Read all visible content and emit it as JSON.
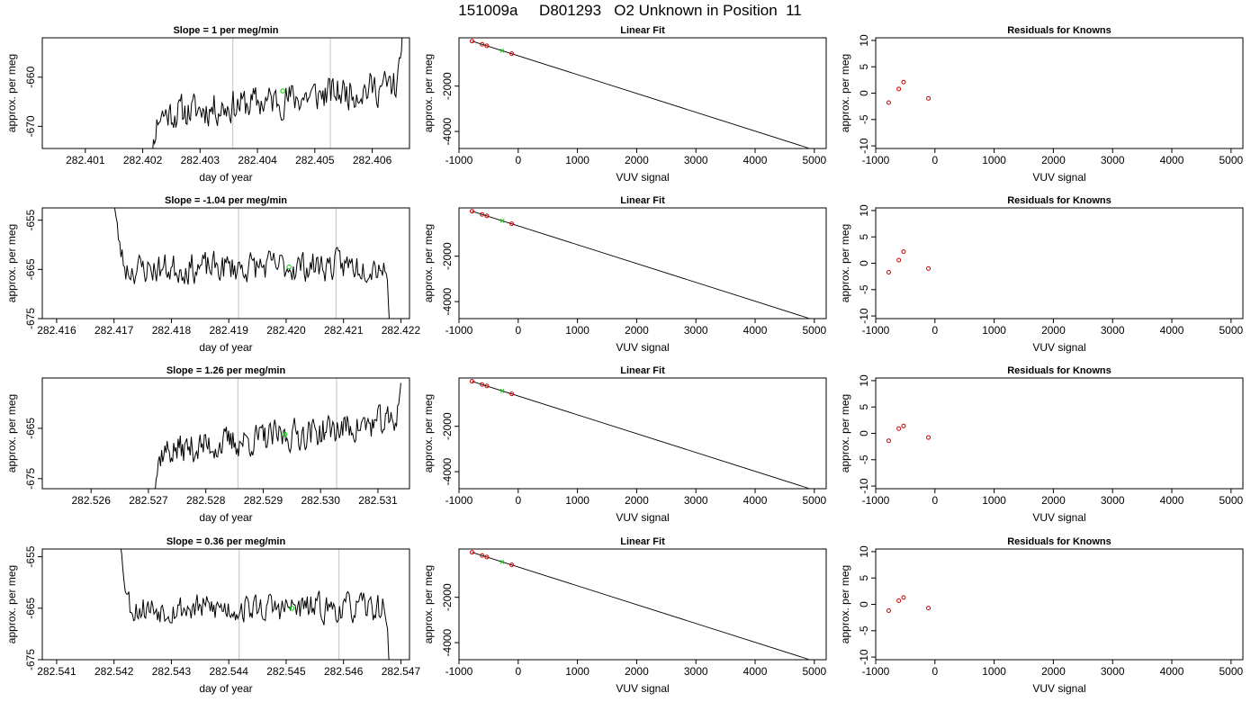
{
  "main_title": "151009a     D801293   O2 Unknown in Position  11",
  "style": {
    "trace_color": "#000000",
    "marker_color": "#00cc00",
    "residual_color": "#cc0000",
    "guide_color": "#cccccc",
    "fit_color": "#000000"
  },
  "chart_data": [
    {
      "type": "line",
      "panel": "time-series",
      "row": 1,
      "title": "Slope =  1  per meg/min",
      "xlabel": "day of year",
      "ylabel": "approx. per meg",
      "xlim": [
        282.40025,
        282.40665
      ],
      "ylim": [
        -674.5,
        -652
      ],
      "xticks": [
        "282.401",
        "282.402",
        "282.403",
        "282.404",
        "282.405",
        "282.406"
      ],
      "xtick_values": [
        282.401,
        282.402,
        282.403,
        282.404,
        282.405,
        282.406
      ],
      "yticks": [
        "-660",
        "-670"
      ],
      "ytick_values": [
        -660,
        -670
      ],
      "guides": [
        282.40357,
        282.40527
      ],
      "trace": {
        "x0": 282.40205,
        "x1": 282.40655,
        "base_start": -668,
        "base_end": -661.5,
        "entry": -690,
        "exit": -645,
        "noise": 2.2,
        "seed": 11
      },
      "marker": {
        "x": 282.40444,
        "y": -662.8
      }
    },
    {
      "type": "scatter",
      "panel": "linear-fit",
      "row": 1,
      "title": "Linear Fit",
      "xlabel": "VUV signal",
      "ylabel": "approx. per meg",
      "xlim": [
        -1000,
        5200
      ],
      "ylim": [
        -4750,
        130
      ],
      "xticks": [
        "-1000",
        "0",
        "1000",
        "2000",
        "3000",
        "4000",
        "5000"
      ],
      "xtick_values": [
        -1000,
        0,
        1000,
        2000,
        3000,
        4000,
        5000
      ],
      "yticks": [
        "-2000",
        "-4000"
      ],
      "ytick_values": [
        -2000,
        -4000
      ],
      "fit": {
        "x": [
          -780,
          4900
        ],
        "y": [
          -16,
          -4730
        ]
      },
      "points": [
        {
          "x": -780,
          "y": -16
        },
        {
          "x": -610,
          "y": -157
        },
        {
          "x": -530,
          "y": -222
        },
        {
          "x": -110,
          "y": -570
        }
      ],
      "unknown": {
        "x": -270,
        "y": -438
      }
    },
    {
      "type": "scatter",
      "panel": "residuals",
      "row": 1,
      "title": "Residuals for Knowns",
      "xlabel": "VUV signal",
      "ylabel": "approx. per meg",
      "xlim": [
        -1000,
        5200
      ],
      "ylim": [
        -10.5,
        10.5
      ],
      "xticks": [
        "-1000",
        "0",
        "1000",
        "2000",
        "3000",
        "4000",
        "5000"
      ],
      "xtick_values": [
        -1000,
        0,
        1000,
        2000,
        3000,
        4000,
        5000
      ],
      "yticks": [
        "10",
        "5",
        "0",
        "-5",
        "-10"
      ],
      "ytick_values": [
        10,
        5,
        0,
        -5,
        -10
      ],
      "points": [
        {
          "x": -780,
          "y": -1.8
        },
        {
          "x": -610,
          "y": 0.8
        },
        {
          "x": -530,
          "y": 2.1
        },
        {
          "x": -110,
          "y": -1.0
        }
      ]
    },
    {
      "type": "line",
      "panel": "time-series",
      "row": 2,
      "title": "Slope =  -1.04  per meg/min",
      "xlabel": "day of year",
      "ylabel": "approx. per meg",
      "xlim": [
        282.41575,
        282.42215
      ],
      "ylim": [
        -675,
        -652.5
      ],
      "xticks": [
        "282.416",
        "282.417",
        "282.418",
        "282.419",
        "282.420",
        "282.421",
        "282.422"
      ],
      "xtick_values": [
        282.416,
        282.417,
        282.418,
        282.419,
        282.42,
        282.421,
        282.422
      ],
      "yticks": [
        "-655",
        "-665",
        "-675"
      ],
      "ytick_values": [
        -655,
        -665,
        -675
      ],
      "guides": [
        282.41917,
        282.42087
      ],
      "trace": {
        "x0": 282.41695,
        "x1": 282.42185,
        "base_start": -665,
        "base_end": -664,
        "entry": -645,
        "exit": -690,
        "noise": 2.0,
        "seed": 23
      },
      "marker": {
        "x": 282.42005,
        "y": -664.5
      }
    },
    {
      "type": "scatter",
      "panel": "linear-fit",
      "row": 2,
      "title": "Linear Fit",
      "xlabel": "VUV signal",
      "ylabel": "approx. per meg",
      "xlim": [
        -1000,
        5200
      ],
      "ylim": [
        -4750,
        130
      ],
      "xticks": [
        "-1000",
        "0",
        "1000",
        "2000",
        "3000",
        "4000",
        "5000"
      ],
      "xtick_values": [
        -1000,
        0,
        1000,
        2000,
        3000,
        4000,
        5000
      ],
      "yticks": [
        "-2000",
        "-4000"
      ],
      "ytick_values": [
        -2000,
        -4000
      ],
      "fit": {
        "x": [
          -780,
          4900
        ],
        "y": [
          -16,
          -4730
        ]
      },
      "points": [
        {
          "x": -780,
          "y": -16
        },
        {
          "x": -610,
          "y": -157
        },
        {
          "x": -530,
          "y": -222
        },
        {
          "x": -110,
          "y": -570
        }
      ],
      "unknown": {
        "x": -270,
        "y": -438
      }
    },
    {
      "type": "scatter",
      "panel": "residuals",
      "row": 2,
      "title": "Residuals for Knowns",
      "xlabel": "VUV signal",
      "ylabel": "approx. per meg",
      "xlim": [
        -1000,
        5200
      ],
      "ylim": [
        -10.5,
        10.5
      ],
      "xticks": [
        "-1000",
        "0",
        "1000",
        "2000",
        "3000",
        "4000",
        "5000"
      ],
      "xtick_values": [
        -1000,
        0,
        1000,
        2000,
        3000,
        4000,
        5000
      ],
      "yticks": [
        "10",
        "5",
        "0",
        "-5",
        "-10"
      ],
      "ytick_values": [
        10,
        5,
        0,
        -5,
        -10
      ],
      "points": [
        {
          "x": -780,
          "y": -1.7
        },
        {
          "x": -610,
          "y": 0.6
        },
        {
          "x": -530,
          "y": 2.2
        },
        {
          "x": -110,
          "y": -1.0
        }
      ]
    },
    {
      "type": "line",
      "panel": "time-series",
      "row": 3,
      "title": "Slope =  1.26  per meg/min",
      "xlabel": "day of year",
      "ylabel": "approx. per meg",
      "xlim": [
        282.52515,
        282.53155
      ],
      "ylim": [
        -677,
        -655
      ],
      "xticks": [
        "282.526",
        "282.527",
        "282.528",
        "282.529",
        "282.530",
        "282.531"
      ],
      "xtick_values": [
        282.526,
        282.527,
        282.528,
        282.529,
        282.53,
        282.531
      ],
      "yticks": [
        "-665",
        "-675"
      ],
      "ytick_values": [
        -665,
        -675
      ],
      "guides": [
        282.52856,
        282.53028
      ],
      "trace": {
        "x0": 282.527,
        "x1": 282.5314,
        "base_start": -670,
        "base_end": -663.5,
        "entry": -690,
        "exit": -656,
        "noise": 2.0,
        "seed": 37
      },
      "marker": {
        "x": 282.52938,
        "y": -666.2
      }
    },
    {
      "type": "scatter",
      "panel": "linear-fit",
      "row": 3,
      "title": "Linear Fit",
      "xlabel": "VUV signal",
      "ylabel": "approx. per meg",
      "xlim": [
        -1000,
        5200
      ],
      "ylim": [
        -4750,
        130
      ],
      "xticks": [
        "-1000",
        "0",
        "1000",
        "2000",
        "3000",
        "4000",
        "5000"
      ],
      "xtick_values": [
        -1000,
        0,
        1000,
        2000,
        3000,
        4000,
        5000
      ],
      "yticks": [
        "-2000",
        "-4000"
      ],
      "ytick_values": [
        -2000,
        -4000
      ],
      "fit": {
        "x": [
          -780,
          4900
        ],
        "y": [
          -16,
          -4730
        ]
      },
      "points": [
        {
          "x": -780,
          "y": -16
        },
        {
          "x": -610,
          "y": -157
        },
        {
          "x": -530,
          "y": -222
        },
        {
          "x": -110,
          "y": -570
        }
      ],
      "unknown": {
        "x": -270,
        "y": -438
      }
    },
    {
      "type": "scatter",
      "panel": "residuals",
      "row": 3,
      "title": "Residuals for Knowns",
      "xlabel": "VUV signal",
      "ylabel": "approx. per meg",
      "xlim": [
        -1000,
        5200
      ],
      "ylim": [
        -10.5,
        10.5
      ],
      "xticks": [
        "-1000",
        "0",
        "1000",
        "2000",
        "3000",
        "4000",
        "5000"
      ],
      "xtick_values": [
        -1000,
        0,
        1000,
        2000,
        3000,
        4000,
        5000
      ],
      "yticks": [
        "10",
        "5",
        "0",
        "-5",
        "-10"
      ],
      "ytick_values": [
        10,
        5,
        0,
        -5,
        -10
      ],
      "points": [
        {
          "x": -780,
          "y": -1.4
        },
        {
          "x": -610,
          "y": 0.9
        },
        {
          "x": -530,
          "y": 1.4
        },
        {
          "x": -110,
          "y": -0.8
        }
      ]
    },
    {
      "type": "line",
      "panel": "time-series",
      "row": 4,
      "title": "Slope =  0.36  per meg/min",
      "xlabel": "day of year",
      "ylabel": "approx. per meg",
      "xlim": [
        282.54075,
        282.54715
      ],
      "ylim": [
        -675,
        -653.5
      ],
      "xticks": [
        "282.541",
        "282.542",
        "282.543",
        "282.544",
        "282.545",
        "282.546",
        "282.547"
      ],
      "xtick_values": [
        282.541,
        282.542,
        282.543,
        282.544,
        282.545,
        282.546,
        282.547
      ],
      "yticks": [
        "-655",
        "-665",
        "-675"
      ],
      "ytick_values": [
        -655,
        -665,
        -675
      ],
      "guides": [
        282.54418,
        282.54592
      ],
      "trace": {
        "x0": 282.54205,
        "x1": 282.54685,
        "base_start": -665,
        "base_end": -665,
        "entry": -645,
        "exit": -690,
        "noise": 1.8,
        "seed": 53
      },
      "marker": {
        "x": 282.5451,
        "y": -665.0
      }
    },
    {
      "type": "scatter",
      "panel": "linear-fit",
      "row": 4,
      "title": "Linear Fit",
      "xlabel": "VUV signal",
      "ylabel": "approx. per meg",
      "xlim": [
        -1000,
        5200
      ],
      "ylim": [
        -4750,
        130
      ],
      "xticks": [
        "-1000",
        "0",
        "1000",
        "2000",
        "3000",
        "4000",
        "5000"
      ],
      "xtick_values": [
        -1000,
        0,
        1000,
        2000,
        3000,
        4000,
        5000
      ],
      "yticks": [
        "-2000",
        "-4000"
      ],
      "ytick_values": [
        -2000,
        -4000
      ],
      "fit": {
        "x": [
          -780,
          4900
        ],
        "y": [
          -16,
          -4730
        ]
      },
      "points": [
        {
          "x": -780,
          "y": -16
        },
        {
          "x": -610,
          "y": -157
        },
        {
          "x": -530,
          "y": -222
        },
        {
          "x": -110,
          "y": -570
        }
      ],
      "unknown": {
        "x": -270,
        "y": -438
      }
    },
    {
      "type": "scatter",
      "panel": "residuals",
      "row": 4,
      "title": "Residuals for Knowns",
      "xlabel": "VUV signal",
      "ylabel": "approx. per meg",
      "xlim": [
        -1000,
        5200
      ],
      "ylim": [
        -10.5,
        10.5
      ],
      "xticks": [
        "-1000",
        "0",
        "1000",
        "2000",
        "3000",
        "4000",
        "5000"
      ],
      "xtick_values": [
        -1000,
        0,
        1000,
        2000,
        3000,
        4000,
        5000
      ],
      "yticks": [
        "10",
        "5",
        "0",
        "-5",
        "-10"
      ],
      "ytick_values": [
        10,
        5,
        0,
        -5,
        -10
      ],
      "points": [
        {
          "x": -780,
          "y": -1.2
        },
        {
          "x": -610,
          "y": 0.7
        },
        {
          "x": -530,
          "y": 1.3
        },
        {
          "x": -110,
          "y": -0.7
        }
      ]
    }
  ]
}
